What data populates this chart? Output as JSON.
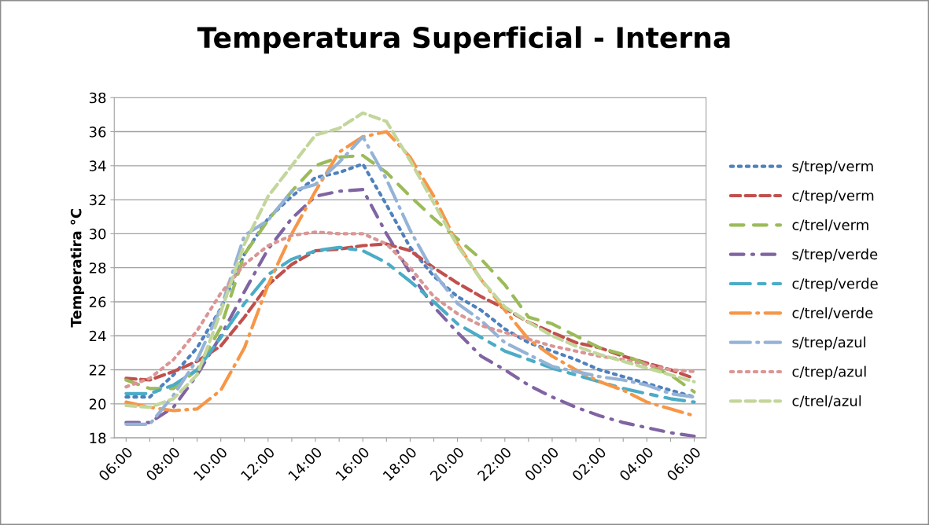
{
  "chart_data": {
    "type": "line",
    "title": "Temperatura Superficial - Interna",
    "ylabel": "Temperatira °C",
    "categories": [
      "06:00",
      null,
      "08:00",
      null,
      "10:00",
      null,
      "12:00",
      null,
      "14:00",
      null,
      "16:00",
      null,
      "18:00",
      null,
      "20:00",
      null,
      "22:00",
      null,
      "00:00",
      null,
      "02:00",
      null,
      "04:00",
      null,
      "06:00"
    ],
    "ylim": [
      18,
      38
    ],
    "yticks": [
      18,
      20,
      22,
      24,
      26,
      28,
      30,
      32,
      34,
      36,
      38
    ],
    "grid": "y",
    "legend": "right",
    "series": [
      {
        "name": "s/trep/verm",
        "color": "#4f81bd",
        "line_style": "dotted",
        "values": [
          20.4,
          20.4,
          21.7,
          23.3,
          25.6,
          28.8,
          30.9,
          32.2,
          33.3,
          33.6,
          34.1,
          31.7,
          29.2,
          27.5,
          26.3,
          25.5,
          24.4,
          23.6,
          23.1,
          22.6,
          22.0,
          21.6,
          21.2,
          20.8,
          20.4
        ]
      },
      {
        "name": "c/trep/verm",
        "color": "#c0504d",
        "line_style": "dashed",
        "values": [
          21.5,
          21.4,
          21.9,
          22.5,
          23.4,
          25.1,
          27.0,
          28.2,
          29.0,
          29.1,
          29.3,
          29.4,
          29.0,
          28.0,
          27.1,
          26.3,
          25.6,
          24.8,
          24.2,
          23.6,
          23.3,
          22.8,
          22.4,
          22.0,
          21.5
        ]
      },
      {
        "name": "c/trel/verm",
        "color": "#9bbb59",
        "line_style": "longdash",
        "values": [
          21.4,
          20.9,
          20.9,
          22.0,
          24.5,
          28.8,
          30.8,
          32.5,
          34.0,
          34.5,
          34.6,
          33.6,
          32.2,
          30.9,
          29.7,
          28.5,
          27.0,
          25.1,
          24.7,
          24.0,
          23.3,
          22.9,
          22.3,
          21.7,
          20.7
        ]
      },
      {
        "name": "s/trep/verde",
        "color": "#8064a2",
        "line_style": "dashdot",
        "values": [
          18.9,
          18.9,
          19.8,
          21.7,
          24.0,
          26.6,
          29.1,
          30.9,
          32.2,
          32.5,
          32.6,
          30.0,
          27.7,
          25.7,
          24.2,
          22.8,
          22.0,
          21.1,
          20.4,
          19.8,
          19.3,
          18.9,
          18.6,
          18.3,
          18.1
        ]
      },
      {
        "name": "c/trep/verde",
        "color": "#4bacc6",
        "line_style": "longdashshort",
        "values": [
          20.6,
          20.6,
          21.1,
          22.0,
          23.9,
          25.9,
          27.6,
          28.5,
          29.0,
          29.2,
          29.0,
          28.3,
          27.2,
          26.0,
          24.7,
          23.9,
          23.1,
          22.6,
          22.1,
          21.7,
          21.3,
          20.9,
          20.6,
          20.3,
          20.1
        ]
      },
      {
        "name": "c/trel/verde",
        "color": "#f79646",
        "line_style": "longdashdot",
        "values": [
          20.1,
          19.8,
          19.6,
          19.7,
          20.8,
          23.3,
          27.0,
          30.0,
          32.5,
          34.8,
          35.7,
          36.0,
          34.5,
          32.2,
          29.4,
          27.3,
          25.5,
          23.8,
          22.8,
          22.0,
          21.3,
          20.8,
          20.1,
          19.7,
          19.3
        ]
      },
      {
        "name": "s/trep/azul",
        "color": "#95b3d7",
        "line_style": "longdashdot",
        "values": [
          18.8,
          18.8,
          20.5,
          22.6,
          25.6,
          29.9,
          30.8,
          32.5,
          32.9,
          34.2,
          35.7,
          33.2,
          30.2,
          27.7,
          25.9,
          24.9,
          23.6,
          22.9,
          22.2,
          21.9,
          21.6,
          21.4,
          21.1,
          20.6,
          20.4
        ]
      },
      {
        "name": "c/trep/azul",
        "color": "#d99694",
        "line_style": "dotted",
        "values": [
          21.0,
          21.5,
          22.6,
          24.3,
          26.5,
          28.2,
          29.3,
          29.9,
          30.1,
          30.0,
          30.0,
          29.4,
          28.0,
          26.3,
          25.3,
          24.6,
          24.2,
          23.8,
          23.4,
          23.1,
          22.8,
          22.6,
          22.3,
          22.0,
          21.9
        ]
      },
      {
        "name": "c/trel/azul",
        "color": "#c3d69b",
        "line_style": "dashed",
        "values": [
          19.9,
          19.8,
          20.3,
          21.7,
          25.4,
          29.4,
          32.2,
          34.0,
          35.8,
          36.2,
          37.1,
          36.6,
          34.3,
          31.8,
          29.3,
          27.3,
          25.7,
          24.8,
          24.0,
          23.4,
          22.9,
          22.5,
          22.1,
          21.7,
          21.3
        ]
      }
    ]
  }
}
